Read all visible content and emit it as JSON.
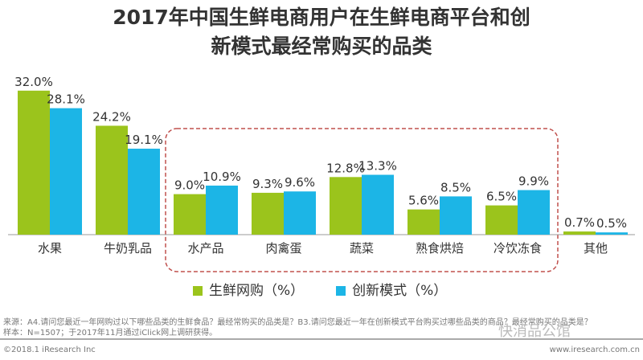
{
  "title_line1": "2017年中国生鲜电商用户在生鲜电商平台和创",
  "title_line2": "新模式最经常购买的品类",
  "chart_data": {
    "type": "bar",
    "title": "2017年中国生鲜电商用户在生鲜电商平台和创新模式最经常购买的品类",
    "categories": [
      "水果",
      "牛奶乳品",
      "水产品",
      "肉禽蛋",
      "蔬菜",
      "熟食烘焙",
      "冷饮冻食",
      "其他"
    ],
    "series": [
      {
        "name": "生鲜网购（%）",
        "color": "#9bc41c",
        "values": [
          32.0,
          24.2,
          9.0,
          9.3,
          12.8,
          5.6,
          6.5,
          0.7
        ]
      },
      {
        "name": "创新模式（%）",
        "color": "#1cb5e6",
        "values": [
          28.1,
          19.1,
          10.9,
          9.6,
          13.3,
          8.5,
          9.9,
          0.5
        ]
      }
    ],
    "highlighted_categories": [
      "水产品",
      "肉禽蛋",
      "蔬菜",
      "熟食烘焙",
      "冷饮冻食"
    ],
    "legend": "bottom",
    "grid": false
  },
  "footer": {
    "source": "来源：A4.请问您最近一年网购过以下哪些品类的生鲜食品？最经常购买的品类是？B3.请问您最近一年在创新模式平台购买过哪些品类的商品？最经常购买的品类是？",
    "sample": "样本：N=1507；于2017年11月通过iClick网上调研获得。",
    "copyright": "©2018.1 iResearch Inc",
    "website": "www.iresearch.com.cn",
    "watermark": "快消品公馆"
  }
}
